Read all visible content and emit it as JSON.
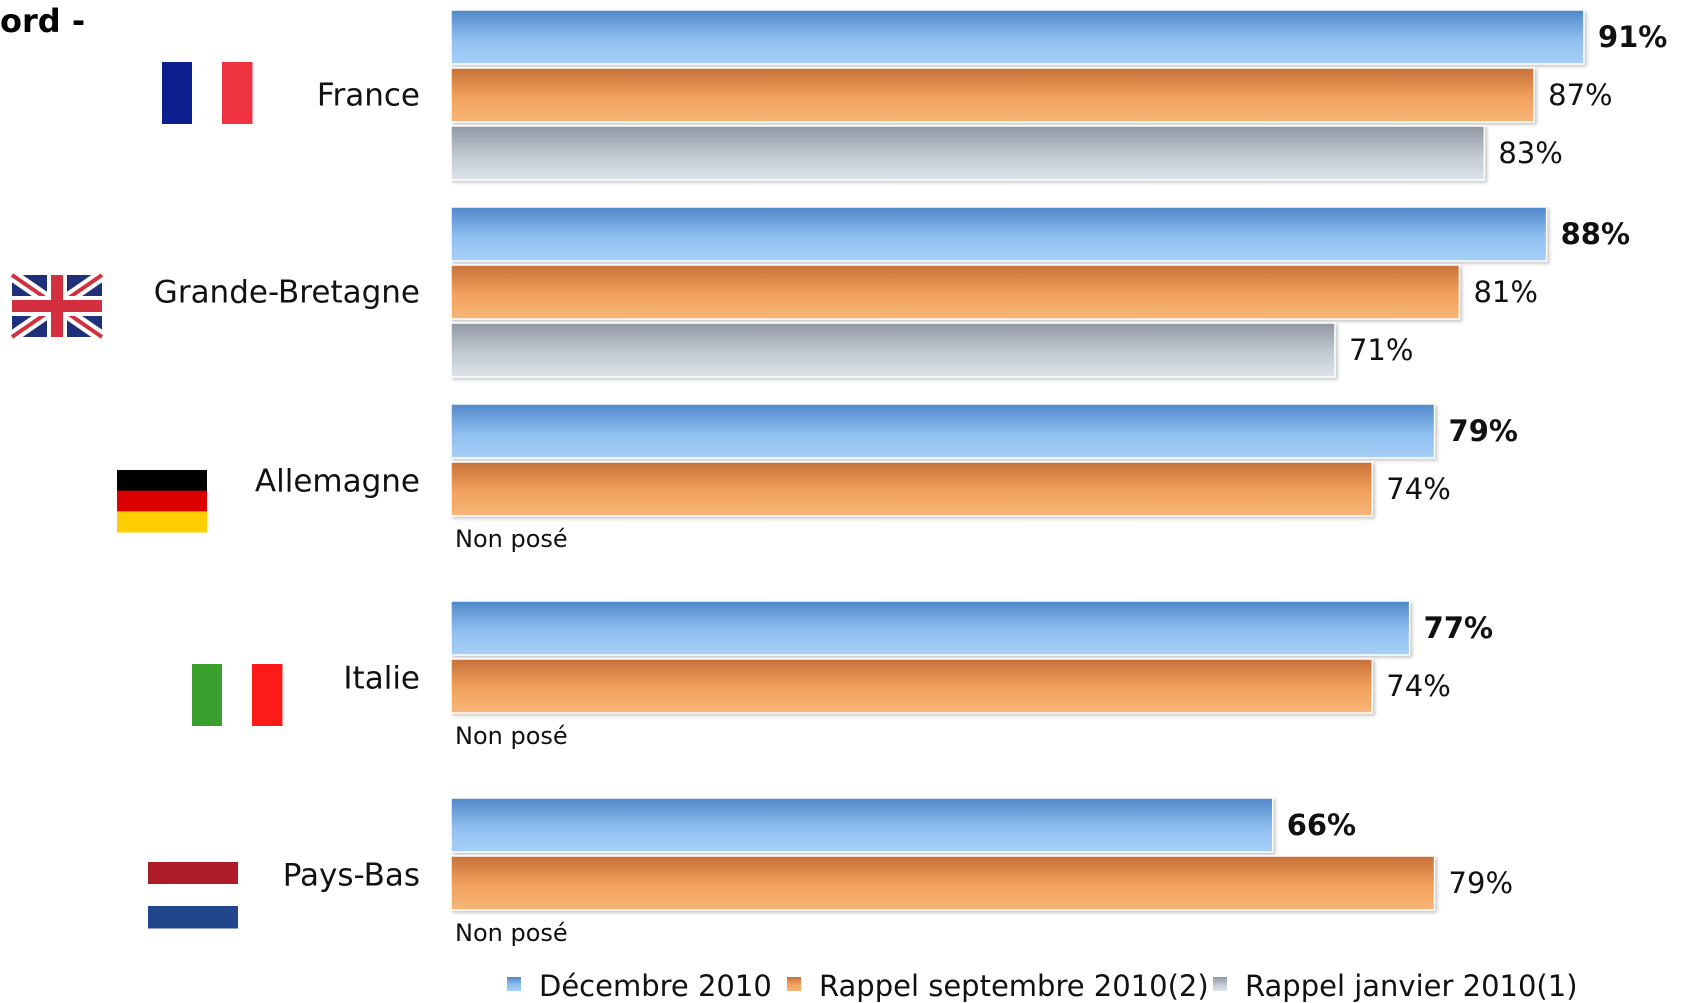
{
  "page": {
    "title_fragment": "ord -"
  },
  "chart_data": {
    "type": "bar",
    "orientation": "horizontal",
    "categories": [
      "France",
      "Grande-Bretagne",
      "Allemagne",
      "Italie",
      "Pays-Bas"
    ],
    "series": [
      {
        "name": "Décembre 2010",
        "values": [
          91,
          88,
          79,
          77,
          66
        ],
        "labels": [
          "91%",
          "88%",
          "79%",
          "77%",
          "66%"
        ],
        "color": "#7fb3e8"
      },
      {
        "name": "Rappel septembre 2010(2)",
        "values": [
          87,
          81,
          74,
          74,
          79
        ],
        "labels": [
          "87%",
          "81%",
          "74%",
          "74%",
          "79%"
        ],
        "color": "#f0a35e"
      },
      {
        "name": "Rappel janvier 2010(1)",
        "values": [
          83,
          71,
          null,
          null,
          null
        ],
        "labels": [
          "83%",
          "71%",
          "Non posé",
          "Non posé",
          "Non posé"
        ],
        "color": "#c9d0d8"
      }
    ],
    "flags": [
      {
        "country": "France",
        "icon": "france-flag-icon",
        "colors": [
          "#0b1f8f",
          "#ffffff",
          "#ef3340"
        ],
        "orientation": "vertical"
      },
      {
        "country": "Grande-Bretagne",
        "icon": "uk-flag-icon",
        "colors": [
          "#1f2f7a",
          "#ffffff",
          "#d32f3f"
        ],
        "orientation": "union-jack"
      },
      {
        "country": "Allemagne",
        "icon": "germany-flag-icon",
        "colors": [
          "#000000",
          "#dd0000",
          "#ffce00"
        ],
        "orientation": "horizontal"
      },
      {
        "country": "Italie",
        "icon": "italy-flag-icon",
        "colors": [
          "#3aa12f",
          "#ffffff",
          "#ff1a1a"
        ],
        "orientation": "vertical"
      },
      {
        "country": "Pays-Bas",
        "icon": "netherlands-flag-icon",
        "colors": [
          "#ae1c28",
          "#ffffff",
          "#21468b"
        ],
        "orientation": "horizontal"
      }
    ],
    "legend": {
      "placement": "bottom",
      "items": [
        "Décembre 2010",
        "Rappel septembre 2010(2)",
        "Rappel janvier 2010(1)"
      ]
    },
    "xlim": [
      0,
      100
    ],
    "grid": false
  }
}
